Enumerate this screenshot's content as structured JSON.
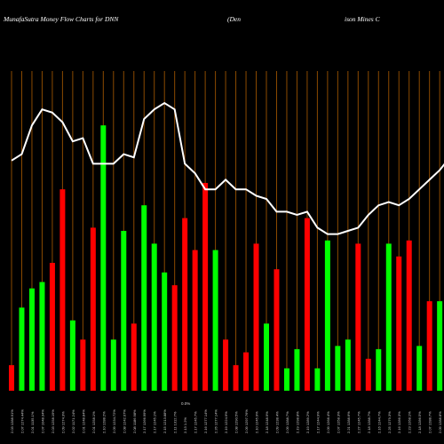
{
  "chart_data": {
    "type": "bar",
    "title_left": "MunafaSutra  Money Flow  Charts for DNN",
    "title_mid": "(Den",
    "title_right": "ison  Mines C",
    "mid_label": "0.0%",
    "colors": {
      "up": "#00ff00",
      "down": "#ff0000",
      "line": "#ffffff",
      "grid": "#8b4a00",
      "background": "#000000"
    },
    "ylim": [
      0,
      100
    ],
    "categories": [
      "2.03 1288.91%",
      "2.07 1274.44%",
      "2.01 1135.1%",
      "2.07 1048.34%",
      "2.03 1258.19%",
      "2.09 1274.3%",
      "2.02 1171.24%",
      "2.01 1248.84%",
      "2.01 1258.1%",
      "2.10 1288.2%",
      "2.09 1234.72%",
      "2.08 1242.07%",
      "2.08 1186.98%",
      "2.17 1266.99%",
      "2.17 1245.1%",
      "2.15 1213.88%",
      "2.11 1312.7%",
      "2.13 1.2%",
      "2.17 1245.7%",
      "2.16 1277.14%",
      "2.26 1277.14%",
      "2.19 1224.9%",
      "2.08 1290.5%",
      "2.09 1297.76%",
      "2.10 1245.9%",
      "2.18 1248.9%",
      "2.09 1238.4%",
      "2.09 1288.7%",
      "2.19 1298.8%",
      "2.19 1289.2%",
      "2.17 1244.9%",
      "2.09 1268.4%",
      "2.07 1258.3%",
      "2.21 1288.6%",
      "2.27 1245.7%",
      "2.18 1288.7%",
      "2.16 1244.7%",
      "2.25 1279.3%",
      "2.16 1286.3%",
      "2.23 1268.1%",
      "2.18 1286.5%",
      "2.07 1288.7%",
      "2.09 1288.8%",
      "2.17 1288.9%",
      "2.16 1288.5%",
      "2.00 1298.6%",
      "2.19 1288.3%"
    ],
    "values": [
      8,
      26,
      32,
      34,
      40,
      63,
      22,
      16,
      51,
      83,
      16,
      50,
      21,
      58,
      46,
      37,
      33,
      54,
      44,
      65,
      44,
      16,
      8,
      12,
      46,
      21,
      38,
      7,
      13,
      54,
      7,
      47,
      14,
      16,
      46,
      10,
      13,
      46,
      42,
      47,
      14,
      28,
      28,
      49,
      17,
      35,
      39
    ],
    "directions": [
      "down",
      "up",
      "up",
      "up",
      "down",
      "down",
      "up",
      "down",
      "down",
      "up",
      "up",
      "up",
      "down",
      "up",
      "up",
      "up",
      "down",
      "down",
      "down",
      "down",
      "up",
      "down",
      "down",
      "down",
      "down",
      "up",
      "down",
      "up",
      "up",
      "down",
      "up",
      "up",
      "up",
      "up",
      "down",
      "down",
      "up",
      "up",
      "down",
      "down",
      "up",
      "down",
      "up",
      "up",
      "up",
      "up",
      "down"
    ],
    "line": [
      72,
      74,
      83,
      88,
      87,
      84,
      78,
      79,
      71,
      71,
      71,
      74,
      73,
      85,
      88,
      90,
      88,
      71,
      68,
      63,
      63,
      66,
      63,
      63,
      61,
      60,
      56,
      56,
      55,
      56,
      51,
      49,
      49,
      50,
      51,
      55,
      58,
      59,
      58,
      60,
      63,
      66,
      69,
      73,
      70,
      70,
      70
    ]
  }
}
